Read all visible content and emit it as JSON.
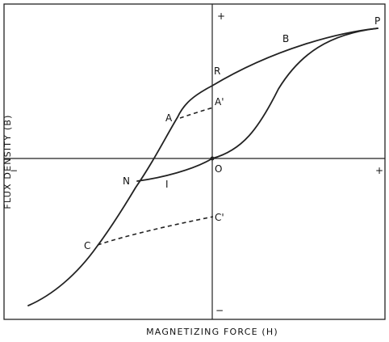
{
  "figure": {
    "x_axis_title": "MAGNETIZING FORCE (H)",
    "y_axis_title": "FLUX DENSITY (B)",
    "x_minus_sign": "−",
    "x_plus_sign": "+",
    "y_plus_sign": "+",
    "y_minus_sign": "−",
    "origin_label": "O",
    "points": {
      "P": "P",
      "B": "B",
      "R": "R",
      "A": "A",
      "A_prime": "A'",
      "N": "N",
      "I": "I",
      "C": "C",
      "C_prime": "C'"
    }
  }
}
